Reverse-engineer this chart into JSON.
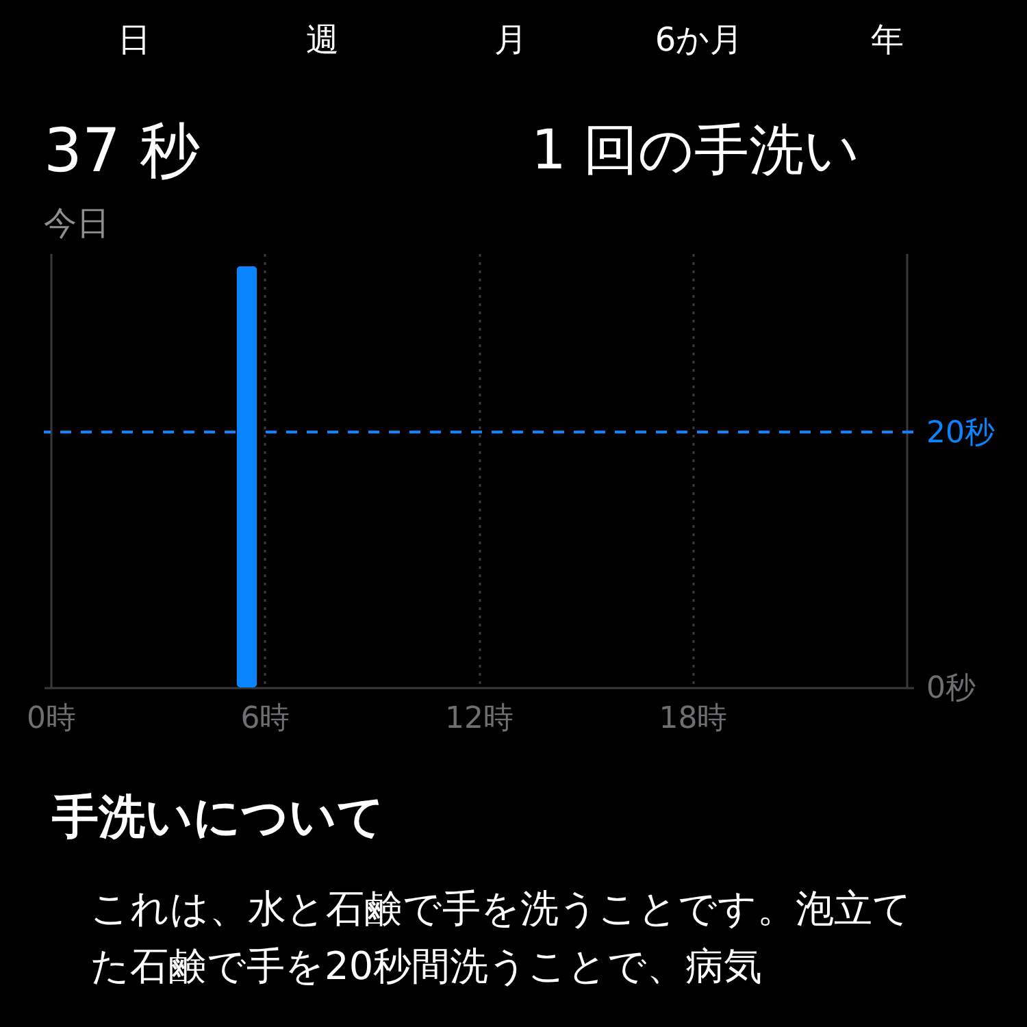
{
  "chart_data": {
    "type": "bar",
    "title": "37 秒",
    "subtitle": "今日",
    "annotations": [
      "日",
      "週",
      "月",
      "6か月",
      "年",
      "1 回の手洗い",
      "手洗いについて",
      "これは、水と石鹸で手を洗うことです。泡立てた石鹸で手を20秒間洗うことで、病気"
    ],
    "x": [
      5.5
    ],
    "values": [
      33
    ],
    "color": "#0a84ff",
    "xlim": [
      0,
      24
    ],
    "xticks": [
      {
        "value": 0,
        "label": "0時"
      },
      {
        "value": 6,
        "label": "6時"
      },
      {
        "value": 12,
        "label": "12時"
      },
      {
        "value": 18,
        "label": "18時"
      },
      {
        "value": 24,
        "label": null
      }
    ],
    "ylim": [
      0,
      34
    ],
    "yticks": [
      {
        "value": 0,
        "label": "0秒"
      },
      {
        "value": 20,
        "label": "20秒"
      }
    ],
    "ref_lines": [
      {
        "axis": "y",
        "value": 20,
        "color": "#0a84ff",
        "line_style": "dashed"
      }
    ],
    "grid": "x"
  }
}
